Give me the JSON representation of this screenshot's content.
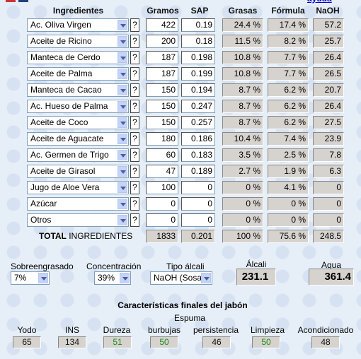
{
  "header": {
    "columns": [
      "Ingredientes",
      "Gramos",
      "SAP",
      "Grasas",
      "Fórmula",
      "NaOH"
    ],
    "help_link": "ayuda"
  },
  "help_button": "?",
  "rows": [
    [
      "Ac. Oliva Virgen",
      "422",
      "0.19",
      "24.4 %",
      "17.4 %",
      "57.2"
    ],
    [
      "Aceite de Ricino",
      "200",
      "0.18",
      "11.5 %",
      "8.2 %",
      "25.7"
    ],
    [
      "Manteca de Cerdo",
      "187",
      "0.198",
      "10.8 %",
      "7.7 %",
      "26.4"
    ],
    [
      "Aceite de Palma",
      "187",
      "0.199",
      "10.8 %",
      "7.7 %",
      "26.5"
    ],
    [
      "Manteca de Cacao",
      "150",
      "0.194",
      "8.7 %",
      "6.2 %",
      "20.7"
    ],
    [
      "Ac. Hueso de Palma",
      "150",
      "0.247",
      "8.7 %",
      "6.2 %",
      "26.4"
    ],
    [
      "Aceite de Coco",
      "150",
      "0.257",
      "8.7 %",
      "6.2 %",
      "27.5"
    ],
    [
      "Aceite de Aguacate",
      "180",
      "0.186",
      "10.4 %",
      "7.4 %",
      "23.9"
    ],
    [
      "Ac. Germen de Trigo",
      "60",
      "0.183",
      "3.5 %",
      "2.5 %",
      "7.8"
    ],
    [
      "Aceite de Girasol",
      "47",
      "0.189",
      "2.7 %",
      "1.9 %",
      "6.3"
    ],
    [
      "Jugo de Aloe Vera",
      "100",
      "0",
      "0 %",
      "4.1 %",
      "0"
    ],
    [
      "Azúcar",
      "0",
      "0",
      "0 %",
      "0 %",
      "0"
    ],
    [
      "Otros",
      "0",
      "0",
      "0 %",
      "0 %",
      "0"
    ]
  ],
  "total": {
    "label_bold": "TOTAL",
    "label_rest": " INGREDIENTES",
    "values": [
      "1833",
      "0.201",
      "100 %",
      "75.6 %",
      "248.5"
    ]
  },
  "settings": {
    "superfat": {
      "label": "Sobreengrasado",
      "value": "7%"
    },
    "concentration": {
      "label": "Concentración",
      "value": "39%"
    },
    "alkali_type": {
      "label": "Tipo álcali",
      "value": "NaOH (Sosa)"
    },
    "alkali": {
      "label": "Álcali",
      "value": "231.1"
    },
    "water": {
      "label": "Agua",
      "value": "361.4"
    }
  },
  "properties": {
    "title": "Características finales del jabón",
    "group_label": "Espuma",
    "items": [
      {
        "label": "Yodo",
        "value": "65",
        "good": false
      },
      {
        "label": "INS",
        "value": "134",
        "good": false
      },
      {
        "label": "Dureza",
        "value": "51",
        "good": true
      },
      {
        "label": "burbujas",
        "value": "50",
        "good": true
      },
      {
        "label": "persistencia",
        "value": "46",
        "good": false
      },
      {
        "label": "Limpieza",
        "value": "50",
        "good": true
      },
      {
        "label": "Acondicionado",
        "value": "48",
        "good": false
      }
    ]
  }
}
